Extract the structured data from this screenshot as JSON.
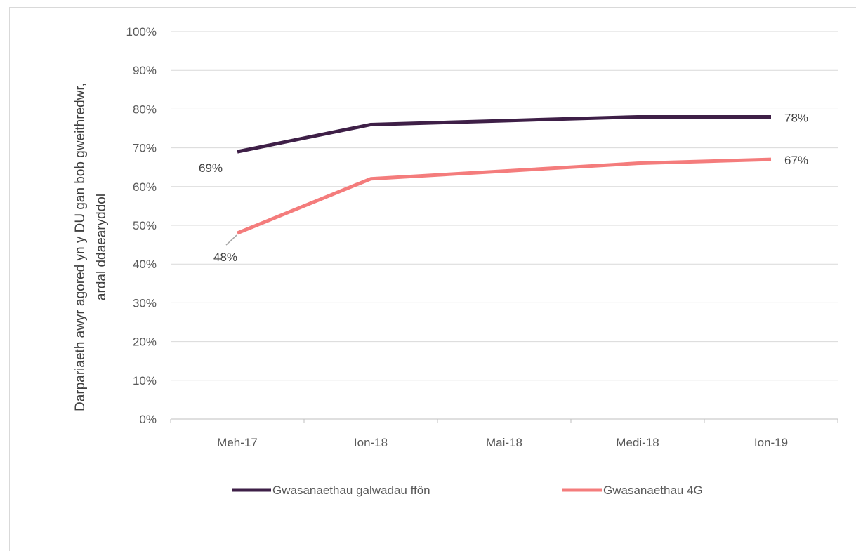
{
  "chart_data": {
    "type": "line",
    "categories": [
      "Meh-17",
      "Ion-18",
      "Mai-18",
      "Medi-18",
      "Ion-19"
    ],
    "ylabel": "Darpariaeth awyr agored yn y DU gan bob gweithredwr, ardal ddaearyddol",
    "ylabel_lines": [
      "Darpariaeth awyr agored yn y DU gan bob gweithredwr,",
      "ardal ddaearyddol"
    ],
    "xlabel": "",
    "ylim": [
      0,
      100
    ],
    "yticks": [
      0,
      10,
      20,
      30,
      40,
      50,
      60,
      70,
      80,
      90,
      100
    ],
    "ytick_labels": [
      "0%",
      "10%",
      "20%",
      "30%",
      "40%",
      "50%",
      "60%",
      "70%",
      "80%",
      "90%",
      "100%"
    ],
    "grid": true,
    "legend_position": "bottom",
    "series": [
      {
        "name": "Gwasanaethau galwadau ffôn",
        "values": [
          69,
          76,
          77,
          78,
          78
        ],
        "color": "#3e1f47",
        "labels": [
          {
            "index": 0,
            "text": "69%"
          },
          {
            "index": 4,
            "text": "78%"
          }
        ]
      },
      {
        "name": "Gwasanaethau 4G",
        "values": [
          48,
          62,
          64,
          66,
          67
        ],
        "color": "#f47c7c",
        "labels": [
          {
            "index": 0,
            "text": "48%"
          },
          {
            "index": 4,
            "text": "67%"
          }
        ]
      }
    ]
  }
}
